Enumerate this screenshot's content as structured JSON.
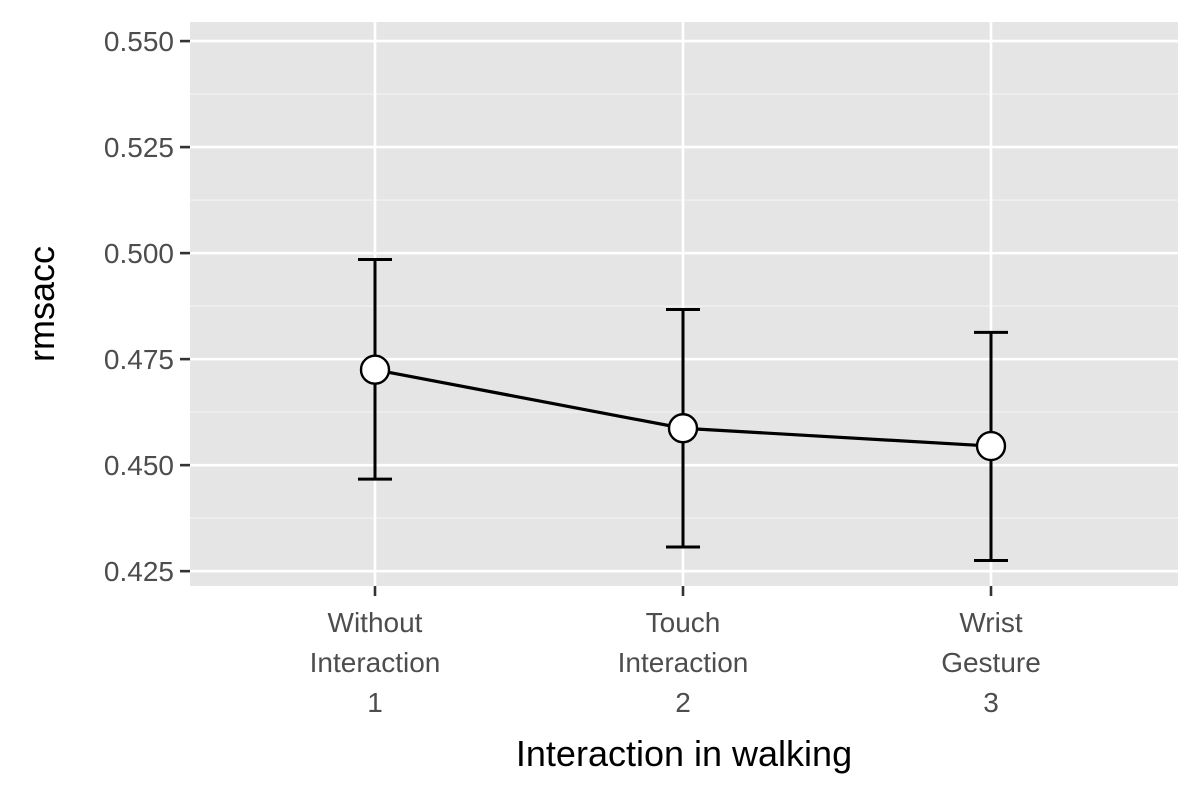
{
  "chart_data": {
    "type": "line",
    "title": "",
    "xlabel": "Interaction in walking",
    "ylabel": "rmsacc",
    "categories": [
      [
        "Without",
        "Interaction",
        "1"
      ],
      [
        "Touch",
        "Interaction",
        "2"
      ],
      [
        "Wrist",
        "Gesture",
        "3"
      ]
    ],
    "series": [
      {
        "values": [
          0.4725,
          0.4587,
          0.4545
        ],
        "error_low": [
          0.4467,
          0.4307,
          0.4275
        ],
        "error_high": [
          0.4985,
          0.4867,
          0.4813
        ]
      }
    ],
    "ylim": [
      0.4215,
      0.5545
    ],
    "y_ticks": [
      "0.425",
      "0.450",
      "0.475",
      "0.500",
      "0.525",
      "0.550"
    ],
    "grid": true,
    "legend": "none",
    "colors": {
      "panel_background": "#e5e5e5",
      "grid_major": "#ffffff",
      "grid_minor": "#f2f2f2",
      "line": "#000000",
      "point_fill": "#ffffff",
      "tick_text": "#4d4d4d"
    }
  }
}
